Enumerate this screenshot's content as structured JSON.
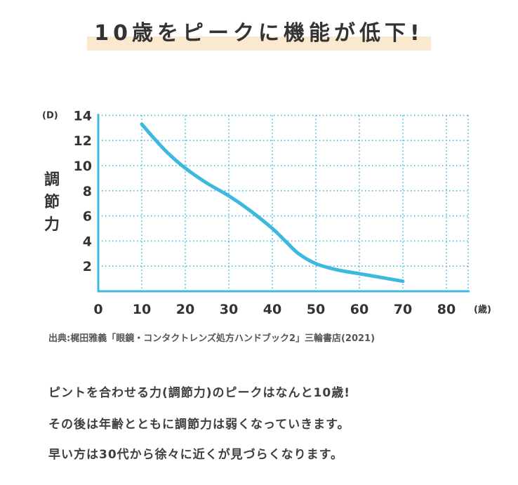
{
  "headline": "10歳をピークに機能が低下!",
  "source": "出典:梶田雅義「眼鏡・コンタクトレンズ処方ハンドブック2」三輪書店(2021)",
  "body_lines": [
    "ピントを合わせる力(調節力)のピークはなんと10歳!",
    "その後は年齢とともに調節力は弱くなっていきます。",
    "早い方は30代から徐々に近くが見づらくなります。"
  ],
  "colors": {
    "accent_line": "#3db8de",
    "grid": "#3db8de",
    "highlight": "#fbe9cf"
  },
  "chart_data": {
    "type": "line",
    "title": "",
    "ylabel": "調節力",
    "yunit": "(D)",
    "xunit": "(歳)",
    "xlim": [
      0,
      85
    ],
    "ylim": [
      0,
      14
    ],
    "x_ticks": [
      0,
      10,
      20,
      30,
      40,
      50,
      60,
      70,
      80
    ],
    "y_ticks": [
      2,
      4,
      6,
      8,
      10,
      12,
      14
    ],
    "grid": true,
    "series": [
      {
        "x": [
          10,
          13,
          16,
          20,
          25,
          30,
          35,
          40,
          43,
          46,
          50,
          55,
          60,
          65,
          70
        ],
        "y": [
          13.3,
          12.1,
          11.0,
          9.8,
          8.6,
          7.6,
          6.4,
          5.0,
          4.0,
          3.0,
          2.2,
          1.7,
          1.4,
          1.1,
          0.8
        ]
      }
    ]
  }
}
